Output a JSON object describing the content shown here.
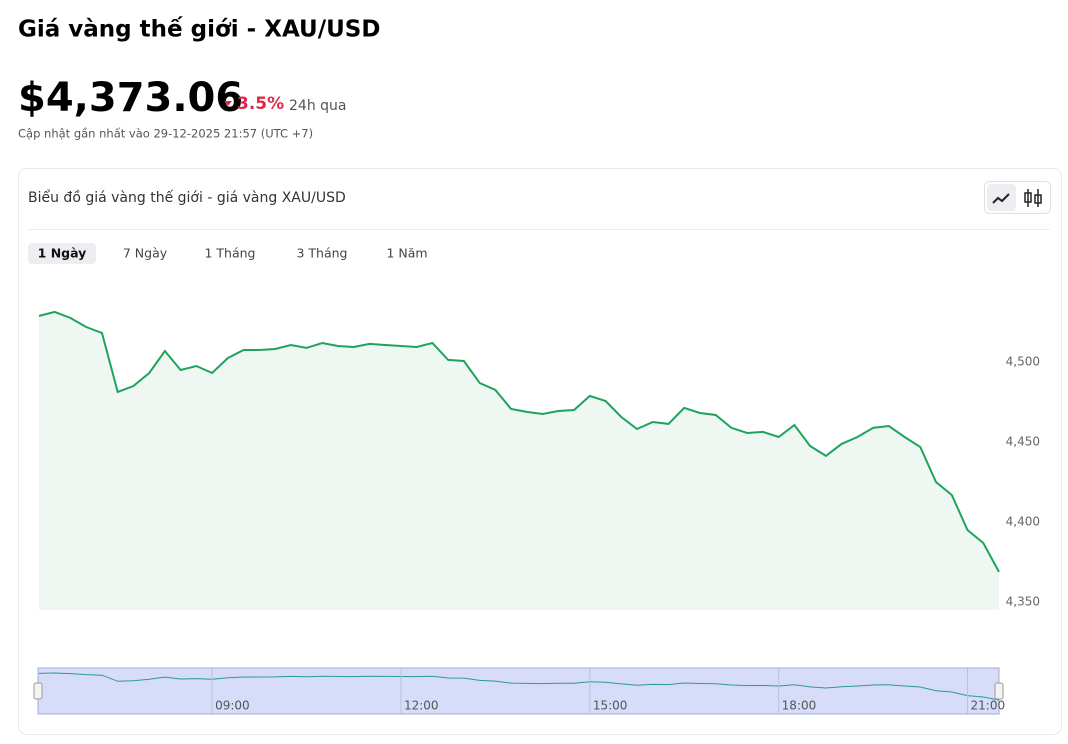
{
  "header": {
    "title": "Giá vàng thế giới - XAU/USD",
    "price": "$4,373.06",
    "change": "3.5%",
    "period": "24h qua",
    "updated": "Cập nhật gần nhất vào 29-12-2025 21:57 (UTC +7)"
  },
  "tabs": [
    "1 Ngày",
    "7 Ngày",
    "1 Tháng",
    "3 Tháng",
    "1 Năm"
  ],
  "chart_data": {
    "type": "area",
    "title": "Biểu đồ giá vàng thế giới - giá vàng XAU/USD",
    "series": [
      {
        "color": "#1fa35c",
        "x": [
          6.25,
          6.5,
          6.75,
          7,
          7.25,
          7.5,
          7.75,
          8,
          8.25,
          8.5,
          8.75,
          9,
          9.25,
          9.5,
          9.75,
          10,
          10.25,
          10.5,
          10.75,
          11,
          11.25,
          11.5,
          11.75,
          12,
          12.25,
          12.5,
          12.75,
          13,
          13.25,
          13.5,
          13.75,
          14,
          14.25,
          14.5,
          14.75,
          15,
          15.25,
          15.5,
          15.75,
          16,
          16.25,
          16.5,
          16.75,
          17,
          17.25,
          17.5,
          17.75,
          18,
          18.25,
          18.5,
          18.75,
          19,
          19.25,
          19.5,
          19.75,
          20,
          20.25,
          20.5,
          20.75,
          21,
          21.25,
          21.5
        ],
        "values": [
          4528.8,
          4531.3,
          4527.5,
          4521.9,
          4518.1,
          4481.3,
          4485,
          4493.1,
          4506.9,
          4495,
          4497.5,
          4493.1,
          4502.5,
          4507.5,
          4507.5,
          4508.1,
          4510.6,
          4508.8,
          4511.9,
          4510,
          4509.4,
          4511.3,
          4510.6,
          4510,
          4509.4,
          4511.9,
          4501.3,
          4500.6,
          4486.9,
          4482.5,
          4470.6,
          4468.8,
          4467.5,
          4469.4,
          4470,
          4478.8,
          4475.6,
          4465.6,
          4458.1,
          4462.5,
          4461.3,
          4471.3,
          4468.1,
          4466.9,
          4458.8,
          4455.6,
          4456.3,
          4453.1,
          4460.6,
          4447.5,
          4441.3,
          4448.8,
          4453.1,
          4458.8,
          4460,
          4453.1,
          4446.9,
          4425,
          4416.9,
          4395,
          4386.9,
          4368.8
        ]
      }
    ],
    "xlim": [
      6.25,
      21.5
    ],
    "xticks": [
      {
        "value": 9,
        "label": "09:00"
      },
      {
        "value": 12,
        "label": "12:00"
      },
      {
        "value": 15,
        "label": "15:00"
      },
      {
        "value": 18,
        "label": "18:00"
      },
      {
        "value": 21,
        "label": "21:00"
      }
    ],
    "ylim": [
      4345,
      4545
    ],
    "yticks": [
      {
        "value": 4350,
        "label": "4,350"
      },
      {
        "value": 4400,
        "label": "4,400"
      },
      {
        "value": 4450,
        "label": "4,450"
      },
      {
        "value": 4500,
        "label": "4,500"
      }
    ]
  }
}
